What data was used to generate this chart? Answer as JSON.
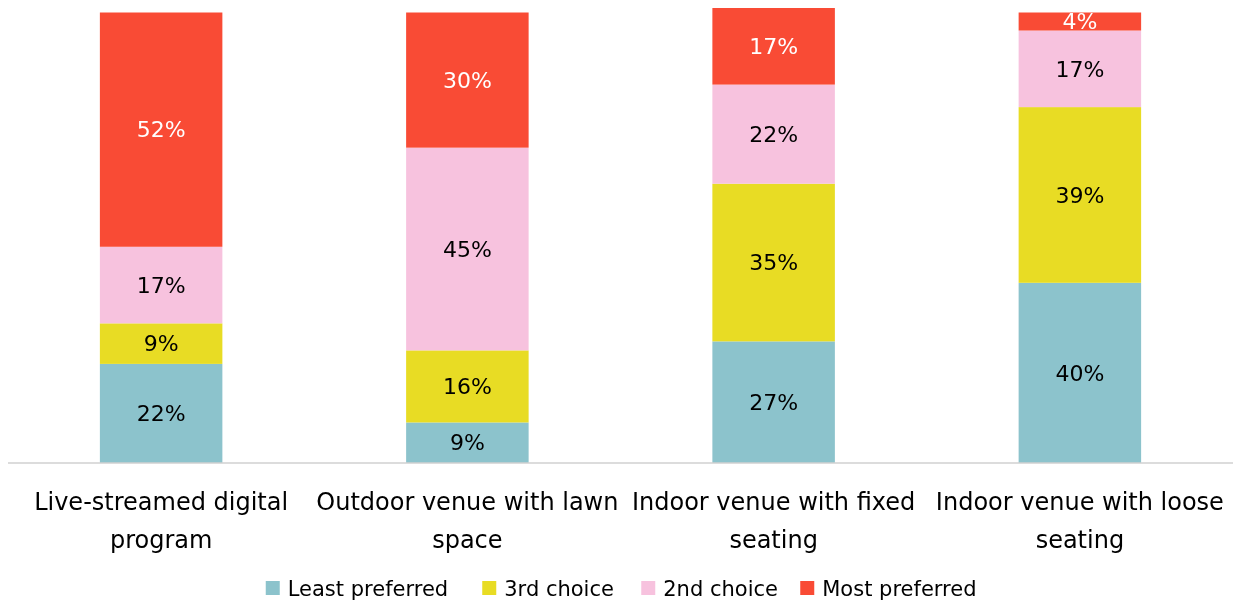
{
  "chart_data": {
    "type": "bar",
    "stacked": true,
    "categories": [
      "Live-streamed digital program",
      "Outdoor venue with lawn space",
      "Indoor venue with fixed seating",
      "Indoor venue with loose seating"
    ],
    "series": [
      {
        "name": "Least preferred",
        "color": "#8cc3cc",
        "values": [
          22,
          9,
          27,
          40
        ],
        "value_labels": [
          "22%",
          "9%",
          "27%",
          "40%"
        ]
      },
      {
        "name": "3rd choice",
        "color": "#e8dc24",
        "values": [
          9,
          16,
          35,
          39
        ],
        "value_labels": [
          "9%",
          "16%",
          "35%",
          "39%"
        ]
      },
      {
        "name": "2nd choice",
        "color": "#f7c2de",
        "values": [
          17,
          45,
          22,
          17
        ],
        "value_labels": [
          "17%",
          "45%",
          "22%",
          "17%"
        ]
      },
      {
        "name": "Most preferred",
        "color": "#f94b35",
        "values": [
          52,
          30,
          17,
          4
        ],
        "value_labels": [
          "52%",
          "30%",
          "17%",
          "4%"
        ]
      }
    ],
    "tick_labels": "x",
    "legend": "bottom"
  }
}
